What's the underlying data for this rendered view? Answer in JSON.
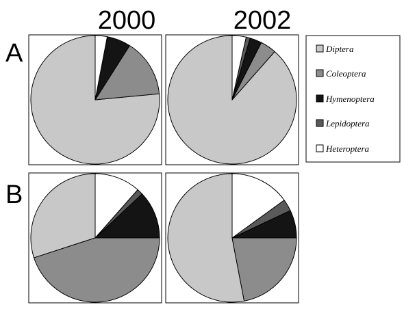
{
  "chart_data": {
    "type": "pie",
    "columns": [
      "2000",
      "2002"
    ],
    "rows": [
      "A",
      "B"
    ],
    "legend": {
      "placement": "right",
      "entries": [
        {
          "label": "Diptera",
          "color": "#c8c8c8"
        },
        {
          "label": "Coleoptera",
          "color": "#8c8c8c"
        },
        {
          "label": "Hymenoptera",
          "color": "#141414"
        },
        {
          "label": "Lepidoptera",
          "color": "#5a5a5a"
        },
        {
          "label": "Heteroptera",
          "color": "#ffffff"
        }
      ]
    },
    "pies": [
      {
        "row": "A",
        "column": "2000",
        "values": {
          "Diptera": 76.5,
          "Coleoptera": 14.5,
          "Hymenoptera": 6,
          "Lepidoptera": 0,
          "Heteroptera": 3
        }
      },
      {
        "row": "A",
        "column": "2002",
        "values": {
          "Diptera": 88.5,
          "Coleoptera": 4,
          "Hymenoptera": 3,
          "Lepidoptera": 1,
          "Heteroptera": 3.5
        }
      },
      {
        "row": "B",
        "column": "2000",
        "values": {
          "Diptera": 30,
          "Coleoptera": 45,
          "Hymenoptera": 12,
          "Lepidoptera": 1.5,
          "Heteroptera": 11.5
        }
      },
      {
        "row": "B",
        "column": "2002",
        "values": {
          "Diptera": 53,
          "Coleoptera": 22,
          "Hymenoptera": 7,
          "Lepidoptera": 3,
          "Heteroptera": 15
        }
      }
    ]
  }
}
